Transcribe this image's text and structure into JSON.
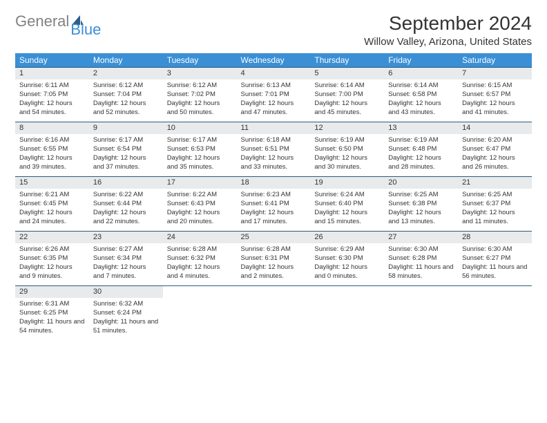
{
  "logo": {
    "word1": "General",
    "word2": "Blue",
    "word1_color": "#808285",
    "word2_color": "#3a8fd5",
    "sail_color": "#2e5c8a"
  },
  "title": "September 2024",
  "location": "Willow Valley, Arizona, United States",
  "day_headers": [
    "Sunday",
    "Monday",
    "Tuesday",
    "Wednesday",
    "Thursday",
    "Friday",
    "Saturday"
  ],
  "colors": {
    "header_bg": "#3a8fd5",
    "header_text": "#ffffff",
    "daynum_bg": "#e8eaec",
    "row_border": "#2a5a7a",
    "text": "#333333"
  },
  "weeks": [
    [
      {
        "num": "1",
        "sunrise": "Sunrise: 6:11 AM",
        "sunset": "Sunset: 7:05 PM",
        "daylight": "Daylight: 12 hours and 54 minutes."
      },
      {
        "num": "2",
        "sunrise": "Sunrise: 6:12 AM",
        "sunset": "Sunset: 7:04 PM",
        "daylight": "Daylight: 12 hours and 52 minutes."
      },
      {
        "num": "3",
        "sunrise": "Sunrise: 6:12 AM",
        "sunset": "Sunset: 7:02 PM",
        "daylight": "Daylight: 12 hours and 50 minutes."
      },
      {
        "num": "4",
        "sunrise": "Sunrise: 6:13 AM",
        "sunset": "Sunset: 7:01 PM",
        "daylight": "Daylight: 12 hours and 47 minutes."
      },
      {
        "num": "5",
        "sunrise": "Sunrise: 6:14 AM",
        "sunset": "Sunset: 7:00 PM",
        "daylight": "Daylight: 12 hours and 45 minutes."
      },
      {
        "num": "6",
        "sunrise": "Sunrise: 6:14 AM",
        "sunset": "Sunset: 6:58 PM",
        "daylight": "Daylight: 12 hours and 43 minutes."
      },
      {
        "num": "7",
        "sunrise": "Sunrise: 6:15 AM",
        "sunset": "Sunset: 6:57 PM",
        "daylight": "Daylight: 12 hours and 41 minutes."
      }
    ],
    [
      {
        "num": "8",
        "sunrise": "Sunrise: 6:16 AM",
        "sunset": "Sunset: 6:55 PM",
        "daylight": "Daylight: 12 hours and 39 minutes."
      },
      {
        "num": "9",
        "sunrise": "Sunrise: 6:17 AM",
        "sunset": "Sunset: 6:54 PM",
        "daylight": "Daylight: 12 hours and 37 minutes."
      },
      {
        "num": "10",
        "sunrise": "Sunrise: 6:17 AM",
        "sunset": "Sunset: 6:53 PM",
        "daylight": "Daylight: 12 hours and 35 minutes."
      },
      {
        "num": "11",
        "sunrise": "Sunrise: 6:18 AM",
        "sunset": "Sunset: 6:51 PM",
        "daylight": "Daylight: 12 hours and 33 minutes."
      },
      {
        "num": "12",
        "sunrise": "Sunrise: 6:19 AM",
        "sunset": "Sunset: 6:50 PM",
        "daylight": "Daylight: 12 hours and 30 minutes."
      },
      {
        "num": "13",
        "sunrise": "Sunrise: 6:19 AM",
        "sunset": "Sunset: 6:48 PM",
        "daylight": "Daylight: 12 hours and 28 minutes."
      },
      {
        "num": "14",
        "sunrise": "Sunrise: 6:20 AM",
        "sunset": "Sunset: 6:47 PM",
        "daylight": "Daylight: 12 hours and 26 minutes."
      }
    ],
    [
      {
        "num": "15",
        "sunrise": "Sunrise: 6:21 AM",
        "sunset": "Sunset: 6:45 PM",
        "daylight": "Daylight: 12 hours and 24 minutes."
      },
      {
        "num": "16",
        "sunrise": "Sunrise: 6:22 AM",
        "sunset": "Sunset: 6:44 PM",
        "daylight": "Daylight: 12 hours and 22 minutes."
      },
      {
        "num": "17",
        "sunrise": "Sunrise: 6:22 AM",
        "sunset": "Sunset: 6:43 PM",
        "daylight": "Daylight: 12 hours and 20 minutes."
      },
      {
        "num": "18",
        "sunrise": "Sunrise: 6:23 AM",
        "sunset": "Sunset: 6:41 PM",
        "daylight": "Daylight: 12 hours and 17 minutes."
      },
      {
        "num": "19",
        "sunrise": "Sunrise: 6:24 AM",
        "sunset": "Sunset: 6:40 PM",
        "daylight": "Daylight: 12 hours and 15 minutes."
      },
      {
        "num": "20",
        "sunrise": "Sunrise: 6:25 AM",
        "sunset": "Sunset: 6:38 PM",
        "daylight": "Daylight: 12 hours and 13 minutes."
      },
      {
        "num": "21",
        "sunrise": "Sunrise: 6:25 AM",
        "sunset": "Sunset: 6:37 PM",
        "daylight": "Daylight: 12 hours and 11 minutes."
      }
    ],
    [
      {
        "num": "22",
        "sunrise": "Sunrise: 6:26 AM",
        "sunset": "Sunset: 6:35 PM",
        "daylight": "Daylight: 12 hours and 9 minutes."
      },
      {
        "num": "23",
        "sunrise": "Sunrise: 6:27 AM",
        "sunset": "Sunset: 6:34 PM",
        "daylight": "Daylight: 12 hours and 7 minutes."
      },
      {
        "num": "24",
        "sunrise": "Sunrise: 6:28 AM",
        "sunset": "Sunset: 6:32 PM",
        "daylight": "Daylight: 12 hours and 4 minutes."
      },
      {
        "num": "25",
        "sunrise": "Sunrise: 6:28 AM",
        "sunset": "Sunset: 6:31 PM",
        "daylight": "Daylight: 12 hours and 2 minutes."
      },
      {
        "num": "26",
        "sunrise": "Sunrise: 6:29 AM",
        "sunset": "Sunset: 6:30 PM",
        "daylight": "Daylight: 12 hours and 0 minutes."
      },
      {
        "num": "27",
        "sunrise": "Sunrise: 6:30 AM",
        "sunset": "Sunset: 6:28 PM",
        "daylight": "Daylight: 11 hours and 58 minutes."
      },
      {
        "num": "28",
        "sunrise": "Sunrise: 6:30 AM",
        "sunset": "Sunset: 6:27 PM",
        "daylight": "Daylight: 11 hours and 56 minutes."
      }
    ],
    [
      {
        "num": "29",
        "sunrise": "Sunrise: 6:31 AM",
        "sunset": "Sunset: 6:25 PM",
        "daylight": "Daylight: 11 hours and 54 minutes."
      },
      {
        "num": "30",
        "sunrise": "Sunrise: 6:32 AM",
        "sunset": "Sunset: 6:24 PM",
        "daylight": "Daylight: 11 hours and 51 minutes."
      },
      null,
      null,
      null,
      null,
      null
    ]
  ]
}
